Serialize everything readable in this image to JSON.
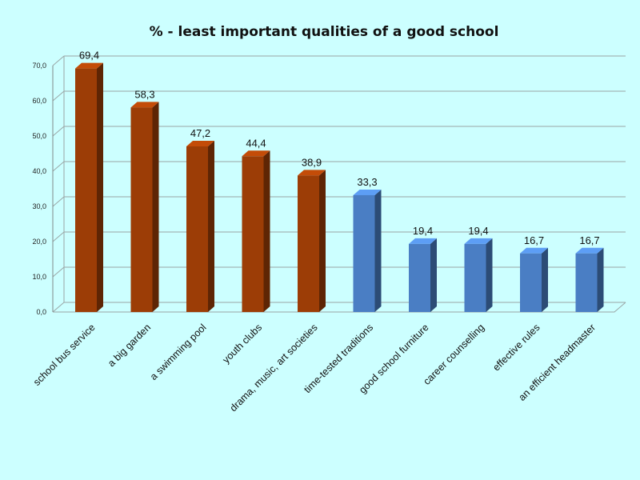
{
  "chart_data": {
    "type": "bar",
    "title": "%  - least important qualities of a good school",
    "xlabel": "",
    "ylabel": "",
    "categories": [
      "school bus service",
      "a big garden",
      "a swimming pool",
      "youth clubs",
      "drama, music, art societies",
      "time-tested traditions",
      "good school furniture",
      "career counselling",
      "effective rules",
      "an efficient headmaster"
    ],
    "values": [
      69.4,
      58.3,
      47.2,
      44.4,
      38.9,
      33.3,
      19.4,
      19.4,
      16.7,
      16.7
    ],
    "data_labels": [
      "69,4",
      "58,3",
      "47,2",
      "44,4",
      "38,9",
      "33,3",
      "19,4",
      "19,4",
      "16,7",
      "16,7"
    ],
    "ylim": [
      0,
      70
    ],
    "y_ticks": [
      0,
      10,
      20,
      30,
      40,
      50,
      60,
      70
    ],
    "y_tick_labels": [
      "0,0",
      "10,0",
      "20,0",
      "30,0",
      "40,0",
      "50,0",
      "60,0",
      "70,0"
    ],
    "grid": true,
    "legend": "none",
    "style": "3d-column",
    "bar_groups": [
      {
        "categories": [
          0,
          1,
          2,
          3,
          4
        ],
        "color": "#9c3d06"
      },
      {
        "categories": [
          5,
          6,
          7,
          8,
          9
        ],
        "color": "#4a7ec4"
      }
    ]
  }
}
